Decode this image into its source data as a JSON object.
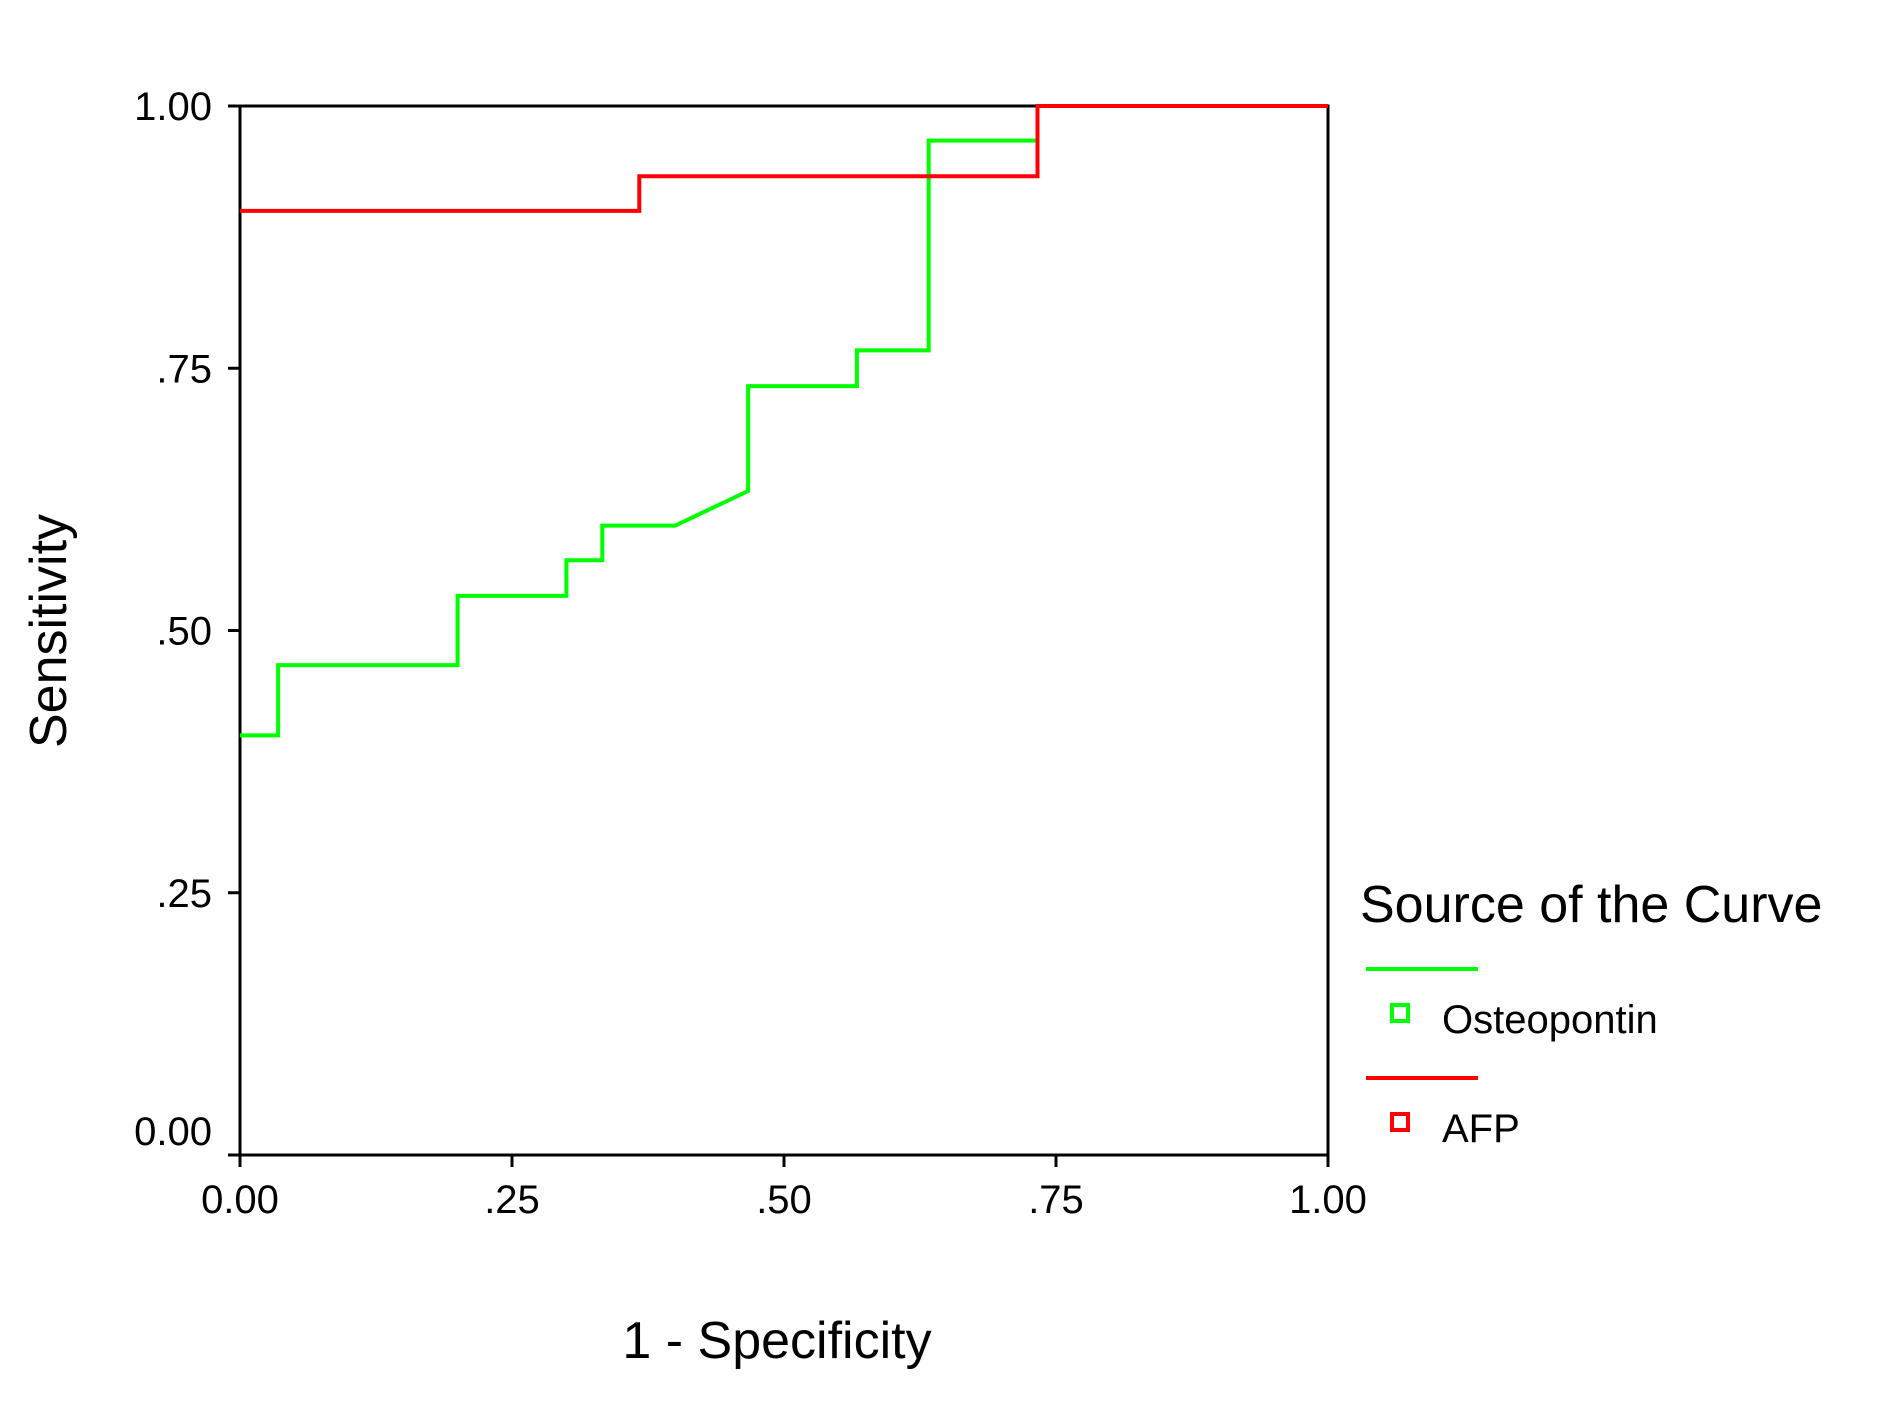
{
  "chart_data": {
    "type": "line",
    "title": "",
    "xlabel": "1 - Specificity",
    "ylabel": "Sensitivity",
    "xlim": [
      0,
      1
    ],
    "ylim": [
      0,
      1
    ],
    "x_ticks": [
      0,
      0.25,
      0.5,
      0.75,
      1
    ],
    "x_tick_labels": [
      "0.00",
      ".25",
      ".50",
      ".75",
      "1.00"
    ],
    "y_ticks": [
      0,
      0.25,
      0.5,
      0.75,
      1
    ],
    "y_tick_labels": [
      "0.00",
      ".25",
      ".50",
      ".75",
      "1.00"
    ],
    "grid": false,
    "legend": {
      "title": "Source of the Curve",
      "placement": "right",
      "entries": [
        "Osteopontin",
        "AFP"
      ]
    },
    "series": [
      {
        "name": "Osteopontin",
        "color": "#00ff00",
        "points": [
          [
            0.0,
            0.4
          ],
          [
            0.035,
            0.4
          ],
          [
            0.035,
            0.467
          ],
          [
            0.2,
            0.467
          ],
          [
            0.2,
            0.533
          ],
          [
            0.3,
            0.533
          ],
          [
            0.3,
            0.567
          ],
          [
            0.333,
            0.567
          ],
          [
            0.333,
            0.6
          ],
          [
            0.4,
            0.6
          ],
          [
            0.467,
            0.633
          ],
          [
            0.467,
            0.733
          ],
          [
            0.567,
            0.733
          ],
          [
            0.567,
            0.767
          ],
          [
            0.633,
            0.767
          ],
          [
            0.633,
            0.967
          ],
          [
            0.733,
            0.967
          ]
        ]
      },
      {
        "name": "AFP",
        "color": "#ff0000",
        "points": [
          [
            0.0,
            0.9
          ],
          [
            0.367,
            0.9
          ],
          [
            0.367,
            0.933
          ],
          [
            0.733,
            0.933
          ],
          [
            0.733,
            1.0
          ],
          [
            1.0,
            1.0
          ]
        ]
      }
    ]
  }
}
